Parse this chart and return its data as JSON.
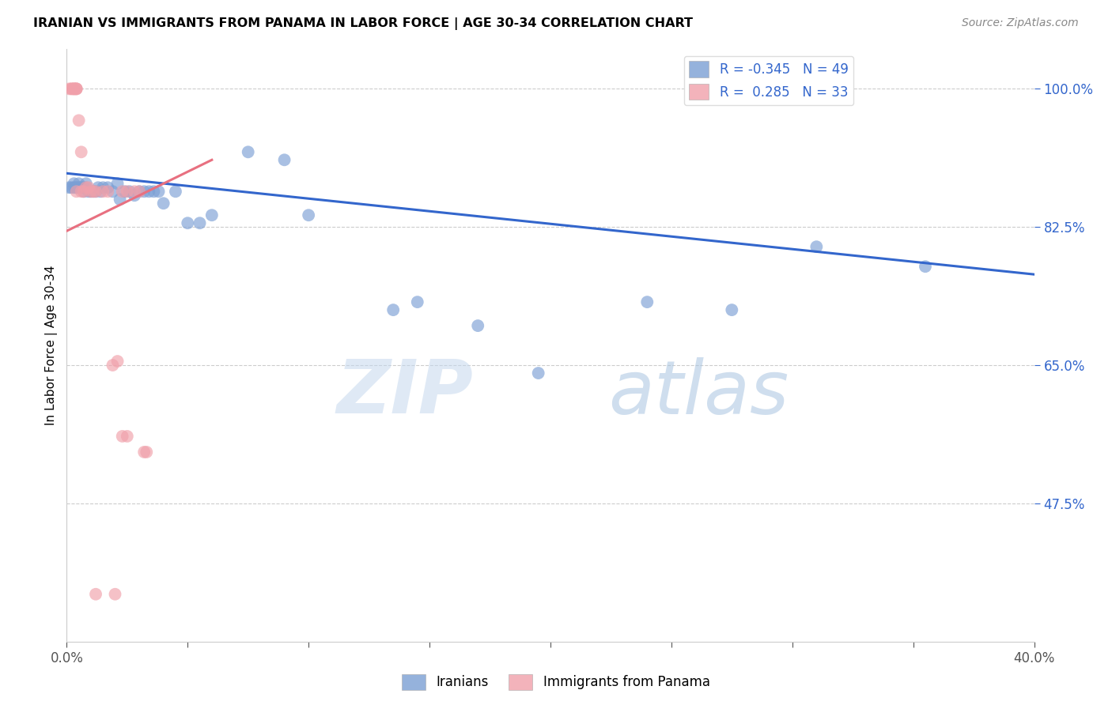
{
  "title": "IRANIAN VS IMMIGRANTS FROM PANAMA IN LABOR FORCE | AGE 30-34 CORRELATION CHART",
  "source": "Source: ZipAtlas.com",
  "ylabel": "In Labor Force | Age 30-34",
  "xlim": [
    0.0,
    0.4
  ],
  "ylim": [
    0.3,
    1.05
  ],
  "yticks": [
    0.475,
    0.65,
    0.825,
    1.0
  ],
  "ytick_labels": [
    "47.5%",
    "65.0%",
    "82.5%",
    "100.0%"
  ],
  "xticks": [
    0.0,
    0.05,
    0.1,
    0.15,
    0.2,
    0.25,
    0.3,
    0.35,
    0.4
  ],
  "xtick_labels": [
    "0.0%",
    "",
    "",
    "",
    "",
    "",
    "",
    "",
    "40.0%"
  ],
  "blue_R": -0.345,
  "blue_N": 49,
  "pink_R": 0.285,
  "pink_N": 33,
  "blue_label": "Iranians",
  "pink_label": "Immigrants from Panama",
  "blue_color": "#7B9FD4",
  "pink_color": "#F0A0AA",
  "blue_line_color": "#3366CC",
  "pink_line_color": "#E87080",
  "watermark_zip": "ZIP",
  "watermark_atlas": "atlas",
  "blue_x": [
    0.001,
    0.002,
    0.003,
    0.003,
    0.004,
    0.004,
    0.005,
    0.005,
    0.006,
    0.006,
    0.007,
    0.007,
    0.008,
    0.008,
    0.009,
    0.01,
    0.011,
    0.012,
    0.013,
    0.014,
    0.015,
    0.017,
    0.019,
    0.021,
    0.022,
    0.024,
    0.026,
    0.028,
    0.03,
    0.032,
    0.034,
    0.036,
    0.038,
    0.04,
    0.045,
    0.05,
    0.055,
    0.06,
    0.075,
    0.09,
    0.1,
    0.135,
    0.145,
    0.17,
    0.195,
    0.24,
    0.275,
    0.31,
    0.355
  ],
  "blue_y": [
    0.875,
    0.875,
    0.875,
    0.88,
    0.875,
    0.875,
    0.875,
    0.88,
    0.875,
    0.875,
    0.875,
    0.87,
    0.875,
    0.88,
    0.87,
    0.87,
    0.87,
    0.87,
    0.875,
    0.87,
    0.875,
    0.875,
    0.87,
    0.88,
    0.86,
    0.87,
    0.87,
    0.865,
    0.87,
    0.87,
    0.87,
    0.87,
    0.87,
    0.855,
    0.87,
    0.83,
    0.83,
    0.84,
    0.92,
    0.91,
    0.84,
    0.72,
    0.73,
    0.7,
    0.64,
    0.73,
    0.72,
    0.8,
    0.775
  ],
  "pink_x": [
    0.001,
    0.002,
    0.002,
    0.003,
    0.003,
    0.003,
    0.004,
    0.004,
    0.004,
    0.005,
    0.006,
    0.006,
    0.007,
    0.008,
    0.009,
    0.01,
    0.011,
    0.012,
    0.015,
    0.017,
    0.019,
    0.021,
    0.023,
    0.025,
    0.028,
    0.03,
    0.032,
    0.033,
    0.004,
    0.012,
    0.02,
    0.023,
    0.025
  ],
  "pink_y": [
    1.0,
    1.0,
    1.0,
    1.0,
    1.0,
    1.0,
    1.0,
    1.0,
    1.0,
    0.96,
    0.92,
    0.87,
    0.87,
    0.875,
    0.875,
    0.87,
    0.87,
    0.87,
    0.87,
    0.87,
    0.65,
    0.655,
    0.87,
    0.87,
    0.87,
    0.87,
    0.54,
    0.54,
    0.87,
    0.36,
    0.36,
    0.56,
    0.56
  ],
  "blue_line_x": [
    0.0,
    0.4
  ],
  "blue_line_y": [
    0.893,
    0.765
  ],
  "pink_line_x": [
    0.0,
    0.06
  ],
  "pink_line_y": [
    0.82,
    0.91
  ]
}
